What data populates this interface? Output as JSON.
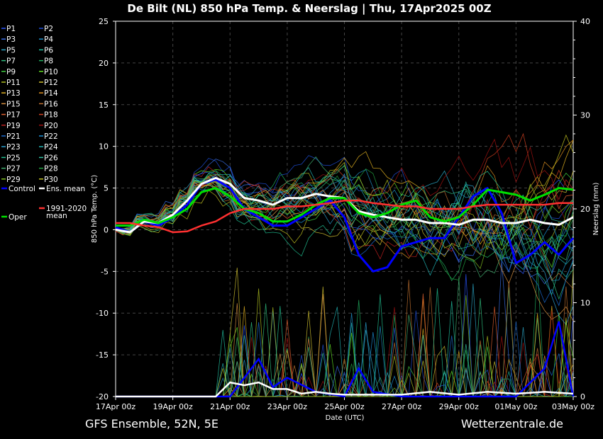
{
  "chart_data": {
    "type": "line",
    "title": "De Bilt  (NL)  850 hPa Temp. & Neerslag | Thu, 17Apr2025 00Z",
    "xlabel": "Date (UTC)",
    "ylabel": "850 hPa Temp. (°C)",
    "y2label": "Neerslag (mm)",
    "ylim": [
      -20,
      25
    ],
    "y2lim": [
      0,
      40
    ],
    "xlim": [
      0,
      16
    ],
    "x_unit": "days from 17Apr 00z",
    "x_ticks": [
      {
        "x": 0,
        "label": "17Apr 00z"
      },
      {
        "x": 2,
        "label": "19Apr 00z"
      },
      {
        "x": 4,
        "label": "21Apr 00z"
      },
      {
        "x": 6,
        "label": "23Apr 00z"
      },
      {
        "x": 8,
        "label": "25Apr 00z"
      },
      {
        "x": 10,
        "label": "27Apr 00z"
      },
      {
        "x": 12,
        "label": "29Apr 00z"
      },
      {
        "x": 14,
        "label": "01May 00z"
      },
      {
        "x": 16,
        "label": "03May 00z"
      }
    ],
    "y_ticks": [
      "25",
      "20",
      "15",
      "10",
      "5",
      "0",
      "-5",
      "-10",
      "-15",
      "-20"
    ],
    "y2_ticks": [
      "40",
      "30",
      "20",
      "10",
      "0"
    ],
    "grid": true,
    "legend_position": "left",
    "legend": [
      {
        "label": "P1",
        "color": "#2a55ff"
      },
      {
        "label": "P2",
        "color": "#1f4fd8"
      },
      {
        "label": "P3",
        "color": "#3a6fe8"
      },
      {
        "label": "P4",
        "color": "#1e8fc8"
      },
      {
        "label": "P5",
        "color": "#2aa8c8"
      },
      {
        "label": "P6",
        "color": "#20c0a0"
      },
      {
        "label": "P7",
        "color": "#30c080"
      },
      {
        "label": "P8",
        "color": "#20b060"
      },
      {
        "label": "P9",
        "color": "#40d040"
      },
      {
        "label": "P10",
        "color": "#60e020"
      },
      {
        "label": "P11",
        "color": "#b0c020"
      },
      {
        "label": "P12",
        "color": "#d0c030"
      },
      {
        "label": "P13",
        "color": "#e0b020"
      },
      {
        "label": "P14",
        "color": "#e09020"
      },
      {
        "label": "P15",
        "color": "#d89040"
      },
      {
        "label": "P16",
        "color": "#c07030"
      },
      {
        "label": "P17",
        "color": "#e06030"
      },
      {
        "label": "P18",
        "color": "#d04020"
      },
      {
        "label": "P19",
        "color": "#c02020"
      },
      {
        "label": "P20",
        "color": "#a01010"
      },
      {
        "label": "P21",
        "color": "#1a6ad0"
      },
      {
        "label": "P22",
        "color": "#1a90d8"
      },
      {
        "label": "P23",
        "color": "#2aa0d0"
      },
      {
        "label": "P24",
        "color": "#20b0b0"
      },
      {
        "label": "P25",
        "color": "#20c090"
      },
      {
        "label": "P26",
        "color": "#30c0a0"
      },
      {
        "label": "P27",
        "color": "#40b070"
      },
      {
        "label": "P28",
        "color": "#20a040"
      },
      {
        "label": "P29",
        "color": "#80c020"
      },
      {
        "label": "P30",
        "color": "#c0c020"
      },
      {
        "label": "Control",
        "color": "#0000ff"
      },
      {
        "label": "Ens. mean",
        "color": "#ffffff"
      },
      {
        "label": "Oper",
        "color": "#00e000"
      },
      {
        "label": "1991-2020 mean",
        "color": "#ff3030"
      }
    ],
    "series": [
      {
        "name": "Control",
        "color": "#0000ff",
        "x": [
          0,
          0.5,
          1,
          1.5,
          2,
          2.5,
          3,
          3.5,
          4,
          4.5,
          5,
          5.5,
          6,
          6.5,
          7,
          7.5,
          8,
          8.5,
          9,
          9.5,
          10,
          10.5,
          11,
          11.5,
          12,
          12.5,
          13,
          13.5,
          14,
          14.5,
          15,
          15.5,
          16
        ],
        "values": [
          0.3,
          -0.3,
          1,
          0.5,
          1.5,
          3,
          5.5,
          6,
          5,
          2.5,
          1.5,
          0.5,
          0.5,
          1.5,
          2.5,
          3.5,
          1.5,
          -3,
          -5,
          -4.5,
          -2,
          -1.5,
          -1,
          -1,
          1.5,
          4,
          5,
          2,
          -4,
          -3,
          -1.5,
          -3,
          -1
        ]
      },
      {
        "name": "Ens. mean",
        "color": "#ffffff",
        "x": [
          0,
          0.5,
          1,
          1.5,
          2,
          2.5,
          3,
          3.5,
          4,
          4.5,
          5,
          5.5,
          6,
          6.5,
          7,
          7.5,
          8,
          8.5,
          9,
          9.5,
          10,
          10.5,
          11,
          11.5,
          12,
          12.5,
          13,
          13.5,
          14,
          14.5,
          15,
          15.5,
          16
        ],
        "values": [
          0,
          -0.3,
          1,
          0.8,
          1.8,
          3.5,
          5.5,
          6.2,
          5.5,
          3.8,
          3.5,
          3,
          3.8,
          3.8,
          4.3,
          4,
          3.8,
          2.2,
          1.8,
          1.5,
          1.2,
          1.2,
          0.8,
          0.8,
          0.6,
          1.2,
          1.2,
          0.8,
          0.8,
          1.2,
          0.8,
          0.6,
          1.5
        ]
      },
      {
        "name": "Oper",
        "color": "#00e000",
        "x": [
          0,
          0.5,
          1,
          1.5,
          2,
          2.5,
          3,
          3.5,
          4,
          4.5,
          5,
          5.5,
          6,
          6.5,
          7,
          7.5,
          8,
          8.5,
          9,
          9.5,
          10,
          10.5,
          11,
          11.5,
          12,
          12.5,
          13,
          13.5,
          14,
          14.5,
          15,
          15.5,
          16
        ],
        "values": [
          0.5,
          0.5,
          1.2,
          0.8,
          1.5,
          2.5,
          4.5,
          5,
          4,
          2.5,
          2,
          1,
          1,
          1.8,
          3,
          3.8,
          3.8,
          2,
          1.5,
          2,
          3,
          3.5,
          1.5,
          1,
          1.5,
          3,
          4.8,
          4.5,
          4.2,
          3.5,
          4.2,
          5,
          4.8
        ]
      },
      {
        "name": "1991-2020 mean",
        "color": "#ff3030",
        "x": [
          0,
          0.5,
          1,
          1.5,
          2,
          2.5,
          3,
          3.5,
          4,
          4.5,
          5,
          5.5,
          6,
          6.5,
          7,
          7.5,
          8,
          8.5,
          9,
          9.5,
          10,
          10.5,
          11,
          11.5,
          12,
          12.5,
          13,
          13.5,
          14,
          14.5,
          15,
          15.5,
          16
        ],
        "values": [
          0.8,
          0.8,
          0.5,
          0.3,
          -0.3,
          -0.2,
          0.5,
          1,
          2,
          2.5,
          2.5,
          2.5,
          2.8,
          2.8,
          3,
          3.2,
          3.5,
          3.5,
          3.2,
          3,
          2.8,
          2.8,
          2.5,
          2.5,
          2.5,
          2.8,
          3,
          3,
          3,
          3,
          3,
          3.2,
          3.2
        ]
      }
    ],
    "precipitation": [
      {
        "name": "Control",
        "color": "#0000ff",
        "x": [
          0,
          4,
          4.5,
          5,
          5.5,
          6,
          7,
          8,
          8.5,
          9,
          10,
          11,
          12,
          13,
          14,
          15,
          15.5,
          16
        ],
        "values": [
          0,
          0,
          2,
          4,
          1,
          2,
          0.5,
          0,
          3,
          0.5,
          0,
          0,
          0,
          0,
          0,
          3,
          8,
          0
        ]
      },
      {
        "name": "Ens. mean",
        "color": "#ffffff",
        "x": [
          0,
          3.5,
          4,
          4.5,
          5,
          5.5,
          6,
          6.5,
          7,
          7.5,
          8,
          9,
          10,
          11,
          12,
          13,
          14,
          15,
          16
        ],
        "values": [
          0,
          0,
          1.5,
          1.2,
          1.5,
          0.8,
          0.8,
          0.3,
          0.5,
          0.3,
          0.2,
          0.2,
          0.2,
          0.5,
          0.2,
          0.5,
          0.3,
          0.5,
          0.3
        ]
      }
    ]
  },
  "footer": {
    "left": "GFS Ensemble, 52N, 5E",
    "right": "Wetterzentrale.de"
  }
}
